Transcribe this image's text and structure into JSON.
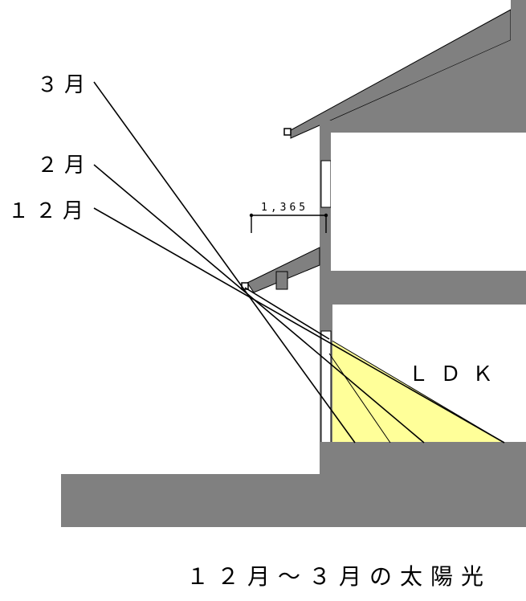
{
  "diagram": {
    "month_labels": {
      "march": "３月",
      "february": "２月",
      "december": "１２月"
    },
    "dimension_label": "1,365",
    "room_label": "ＬＤＫ",
    "caption": "１２月～３月の太陽光",
    "colors": {
      "structure": "#808080",
      "sunlight": "#ffff99",
      "line": "#000000"
    }
  }
}
